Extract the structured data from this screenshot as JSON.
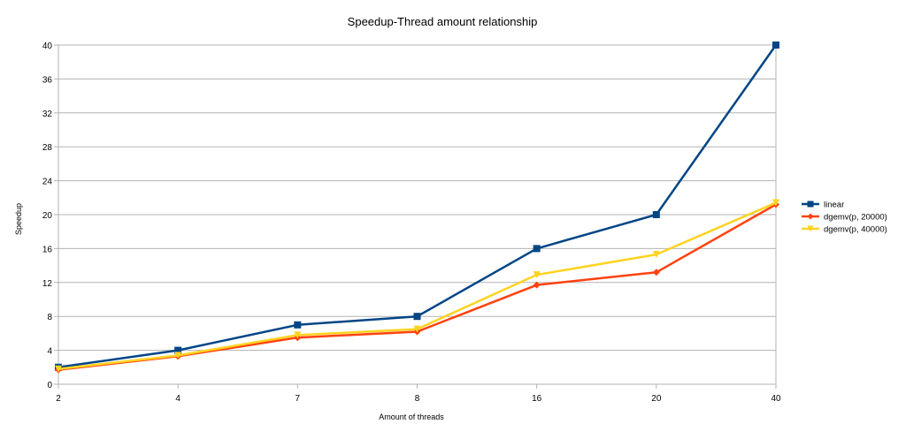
{
  "chart_data": {
    "type": "line",
    "title": "Speedup-Thread amount relationship",
    "xlabel": "Amount of threads",
    "ylabel": "Speedup",
    "categories": [
      "2",
      "4",
      "7",
      "8",
      "16",
      "20",
      "40"
    ],
    "ylim": [
      0,
      40
    ],
    "yticks": [
      0,
      4,
      8,
      12,
      16,
      20,
      24,
      28,
      32,
      36,
      40
    ],
    "grid": true,
    "legend_position": "right",
    "series": [
      {
        "name": "linear",
        "values": [
          2,
          4,
          7,
          8,
          16,
          20,
          40
        ],
        "color": "#004586",
        "marker": "square"
      },
      {
        "name": "dgemv(p, 20000)",
        "values": [
          1.7,
          3.3,
          5.5,
          6.2,
          11.7,
          13.2,
          21.2
        ],
        "color": "#ff420e",
        "marker": "diamond"
      },
      {
        "name": "dgemv(p, 40000)",
        "values": [
          1.8,
          3.4,
          5.8,
          6.5,
          12.9,
          15.3,
          21.4
        ],
        "color": "#ffd320",
        "marker": "triangle-down"
      }
    ]
  }
}
